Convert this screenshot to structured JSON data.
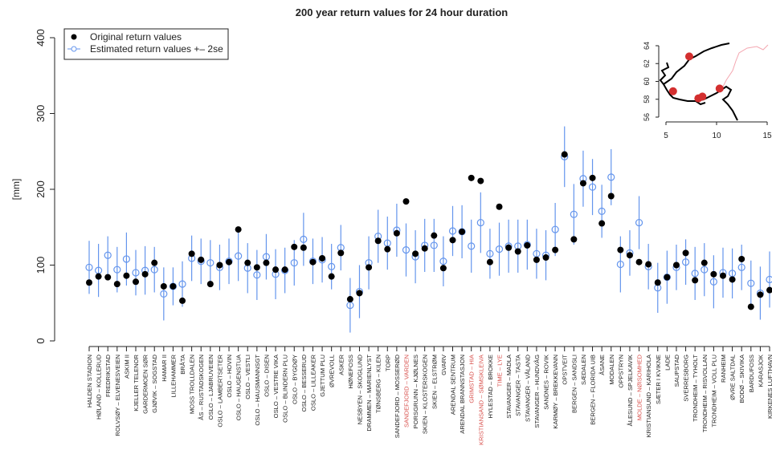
{
  "chart_data": {
    "type": "errorpoints",
    "title": "200 year return values for 24 hour duration",
    "y_label": "[mm]",
    "ylim": [
      0,
      400
    ],
    "yticks": [
      0,
      100,
      200,
      300,
      400
    ],
    "legend_position": "top-left",
    "categories": [
      "HALDEN STADION",
      "HØLAND – KOLLERUD",
      "FREDRIKSTAD",
      "ROLVSØY – ELVENESVEIEN",
      "ASKIM II",
      "KJELLER TELENOR",
      "GARDERMOEN SØR",
      "GJØVIK – SOGSTAD",
      "HAMAR II",
      "LILLEHAMMER",
      "BRÅTA",
      "MOSS TROLLDALEN",
      "ÅS – RUSTADSKOGEN",
      "OSLO – LJABRUVEIEN",
      "OSLO – LAMBERTSETER",
      "OSLO – HOVIN",
      "OSLO – HAUGENSTUA",
      "OSLO – VESTLI",
      "OSLO – HAUSMANNSGT",
      "OSLO – DISEN",
      "OSLO – VESTRE VIKA",
      "OSLO – BLINDERN PLU",
      "OSLO – BYGDØY",
      "OSLO – BESSERUD",
      "OSLO – LILLEAKER",
      "GJETTUM PLU",
      "ØVREVOLL",
      "ASKER",
      "HØNEFOSS",
      "NESBYEN – SKOGLUND",
      "DRAMMEN – MARIENLYST",
      "TØNSBERG – KILEN",
      "TORP",
      "SANDEFJORD – MOSSERØD",
      "SANDEFJORD – VARDEN",
      "PORSGRUNN – KJØLNES",
      "SKIEN – KLOSTERSKOGEN",
      "SKIEN – ELSTRØM",
      "GVARV",
      "ARENDAL SENTRUM",
      "ARENDAL BRANNSTASJON",
      "GRIMSTAD – HIA",
      "KRISTIANSAND – SØMSKLEIVA",
      "HYLESTAD – BROKKE",
      "TIME – LYE",
      "STAVANGER – MADLA",
      "STAVANGER – TASTA",
      "STAVANGER – VÅLAND",
      "STAVANGER – HUNDVÅG",
      "SANDNES – ROVIK",
      "KARMØY – BREKKEVANN",
      "OPSTVEIT",
      "BERGEN – SANDSLI",
      "SÆDALEN",
      "BERGEN – FLORIDA UIB",
      "ÅSANE",
      "MODALEN",
      "OPPSTRYN",
      "ÅLESUND – SPJELKAVIK",
      "MOLDE – NØISOMHED",
      "KRISTIANSUND – KARIHOLA",
      "SÆTER I KVIKNE",
      "LADE",
      "SAUPSTAD",
      "SVERRESBORG",
      "TRONDHEIM – TYHOLT",
      "TRONDHEIM – RISVOLLAN",
      "TRONDHEIM – VOLL PLU",
      "RANHEIM",
      "ØVRE SALTDAL",
      "BODØ – SKIVIKA",
      "BARDUFOSS",
      "KARASJOK",
      "KIRKENES LUFTHAVN"
    ],
    "category_label_colors": [
      "#222",
      "#222",
      "#222",
      "#222",
      "#222",
      "#222",
      "#222",
      "#222",
      "#222",
      "#222",
      "#222",
      "#222",
      "#222",
      "#222",
      "#222",
      "#222",
      "#222",
      "#222",
      "#222",
      "#222",
      "#222",
      "#222",
      "#222",
      "#222",
      "#222",
      "#222",
      "#222",
      "#222",
      "#222",
      "#222",
      "#222",
      "#222",
      "#222",
      "#222",
      "#d9534f",
      "#222",
      "#222",
      "#222",
      "#222",
      "#222",
      "#222",
      "#d9534f",
      "#d9534f",
      "#222",
      "#d9534f",
      "#222",
      "#222",
      "#222",
      "#222",
      "#222",
      "#222",
      "#222",
      "#222",
      "#222",
      "#222",
      "#222",
      "#222",
      "#222",
      "#222",
      "#d9534f",
      "#222",
      "#222",
      "#222",
      "#222",
      "#222",
      "#222",
      "#222",
      "#222",
      "#222",
      "#222",
      "#222",
      "#222",
      "#222",
      "#222"
    ],
    "series": [
      {
        "name": "Original return values",
        "color": "#000000",
        "values": [
          77,
          85,
          84,
          75,
          86,
          78,
          88,
          103,
          72,
          72,
          53,
          115,
          107,
          75,
          100,
          104,
          147,
          103,
          97,
          103,
          94,
          94,
          124,
          123,
          104,
          109,
          85,
          116,
          55,
          63,
          97,
          132,
          121,
          142,
          184,
          115,
          122,
          139,
          96,
          133,
          144,
          215,
          211,
          104,
          177,
          123,
          118,
          126,
          107,
          110,
          120,
          246,
          134,
          208,
          215,
          155,
          191,
          120,
          113,
          104,
          101,
          77,
          84,
          100,
          116,
          80,
          103,
          88,
          86,
          81,
          108,
          45,
          61,
          67
        ]
      },
      {
        "name": "Estimated return values +– 2se",
        "color": "#6495ed",
        "values": [
          97,
          93,
          113,
          94,
          108,
          90,
          93,
          94,
          62,
          72,
          75,
          109,
          105,
          103,
          97,
          105,
          112,
          96,
          87,
          111,
          88,
          93,
          103,
          134,
          105,
          107,
          98,
          123,
          47,
          65,
          103,
          138,
          129,
          146,
          120,
          111,
          126,
          126,
          105,
          145,
          144,
          125,
          156,
          115,
          121,
          125,
          125,
          127,
          115,
          113,
          147,
          243,
          167,
          214,
          203,
          171,
          216,
          101,
          116,
          156,
          98,
          70,
          84,
          97,
          104,
          89,
          94,
          78,
          90,
          89,
          97,
          76,
          63,
          81
        ],
        "errors": [
          35,
          35,
          25,
          30,
          35,
          30,
          32,
          30,
          35,
          25,
          30,
          30,
          30,
          30,
          30,
          30,
          33,
          33,
          33,
          30,
          33,
          30,
          30,
          35,
          30,
          30,
          30,
          30,
          36,
          35,
          35,
          35,
          35,
          35,
          35,
          35,
          35,
          35,
          33,
          33,
          35,
          35,
          40,
          33,
          35,
          35,
          35,
          33,
          33,
          33,
          35,
          40,
          40,
          37,
          37,
          35,
          37,
          37,
          30,
          35,
          30,
          33,
          35,
          30,
          30,
          35,
          35,
          35,
          33,
          33,
          30,
          30,
          35,
          37
        ]
      }
    ],
    "map": {
      "xlim": [
        5,
        15
      ],
      "ylim": [
        56,
        64
      ],
      "xticks": [
        5,
        10,
        15
      ],
      "yticks": [
        56,
        58,
        60,
        62,
        64
      ],
      "color": "#d32f2f",
      "points": {
        "x": [
          7.3,
          5.7,
          8.2,
          8.6,
          10.3
        ],
        "y": [
          62.8,
          58.9,
          58.1,
          58.3,
          59.2
        ]
      }
    }
  }
}
